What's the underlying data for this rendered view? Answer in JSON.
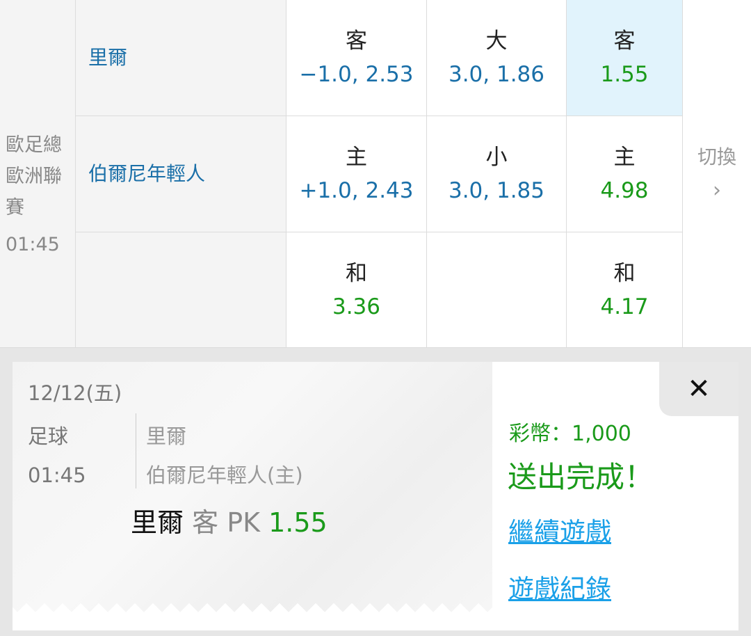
{
  "match": {
    "league": "歐足總歐洲聯賽",
    "time": "01:45",
    "away_team": "里爾",
    "home_team": "伯爾尼年輕人"
  },
  "odds": {
    "handicap": {
      "away_label": "客",
      "away_value": "−1.0, 2.53",
      "home_label": "主",
      "home_value": "+1.0, 2.43",
      "draw_label": "和",
      "draw_value": "3.36"
    },
    "total": {
      "over_label": "大",
      "over_value": "3.0, 1.86",
      "under_label": "小",
      "under_value": "3.0, 1.85"
    },
    "moneyline": {
      "away_label": "客",
      "away_value": "1.55",
      "home_label": "主",
      "home_value": "4.98",
      "draw_label": "和",
      "draw_value": "4.17",
      "selected": "away"
    }
  },
  "switch": {
    "label": "切換",
    "icon": "chevron-right-icon"
  },
  "receipt": {
    "date": "12/12(五)",
    "sport": "足球",
    "time": "01:45",
    "team1": "里爾",
    "team2": "伯爾尼年輕人(主)",
    "pick_team": "里爾",
    "pick_side": "客 PK",
    "pick_odds": "1.55",
    "coins": "彩幣：1,000",
    "status": "送出完成！",
    "continue_link": "繼續遊戲",
    "history_link": "遊戲紀錄",
    "close": "✕"
  },
  "colors": {
    "green": "#1a9a1a",
    "blue": "#1a6fa8",
    "link": "#1aa0e8",
    "selected_bg": "#e1f3fc"
  }
}
